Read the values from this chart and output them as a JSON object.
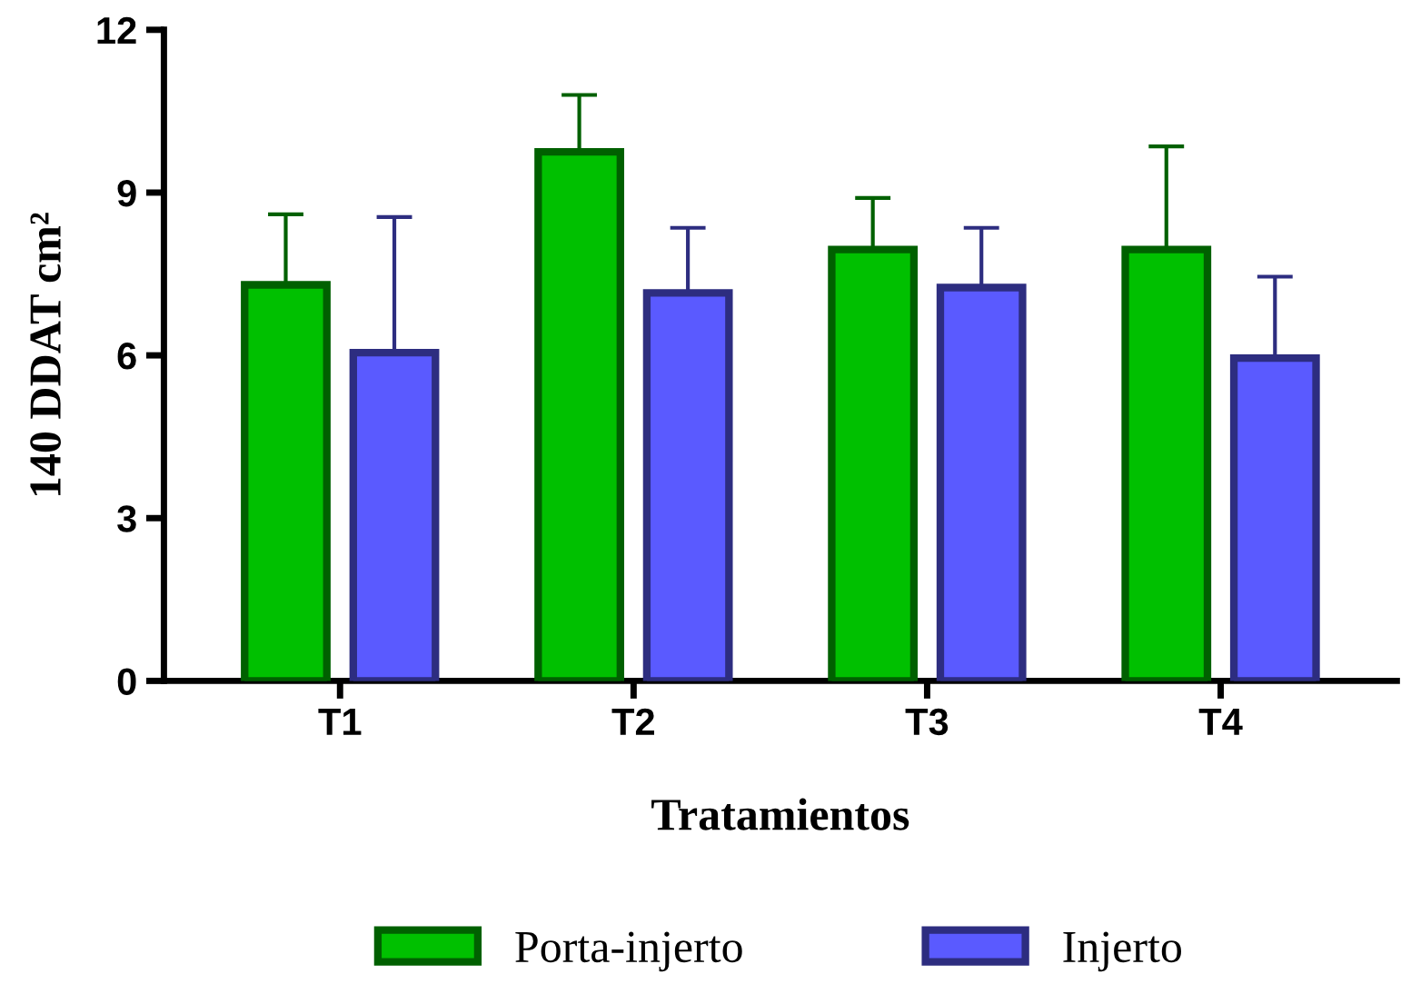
{
  "chart_data": {
    "type": "bar",
    "xlabel": "Tratamientos",
    "ylabel": "140 DDAT cm²",
    "categories": [
      "T1",
      "T2",
      "T3",
      "T4"
    ],
    "series": [
      {
        "name": "Porta-injerto",
        "color": "#00c000",
        "values": [
          7.3,
          9.75,
          7.95,
          7.95
        ],
        "errors": [
          [
            7.3,
            8.6
          ],
          [
            9.75,
            10.8
          ],
          [
            7.95,
            8.9
          ],
          [
            7.95,
            9.85
          ]
        ]
      },
      {
        "name": "Injerto",
        "color": "#5a5aff",
        "values": [
          6.05,
          7.15,
          7.25,
          5.95
        ],
        "errors": [
          [
            6.05,
            8.55
          ],
          [
            7.15,
            8.35
          ],
          [
            7.25,
            8.35
          ],
          [
            5.95,
            7.45
          ]
        ]
      }
    ],
    "ylim": [
      0,
      12
    ],
    "yticks": [
      0,
      3,
      6,
      9,
      12
    ],
    "grid": false,
    "legend": "bottom"
  }
}
